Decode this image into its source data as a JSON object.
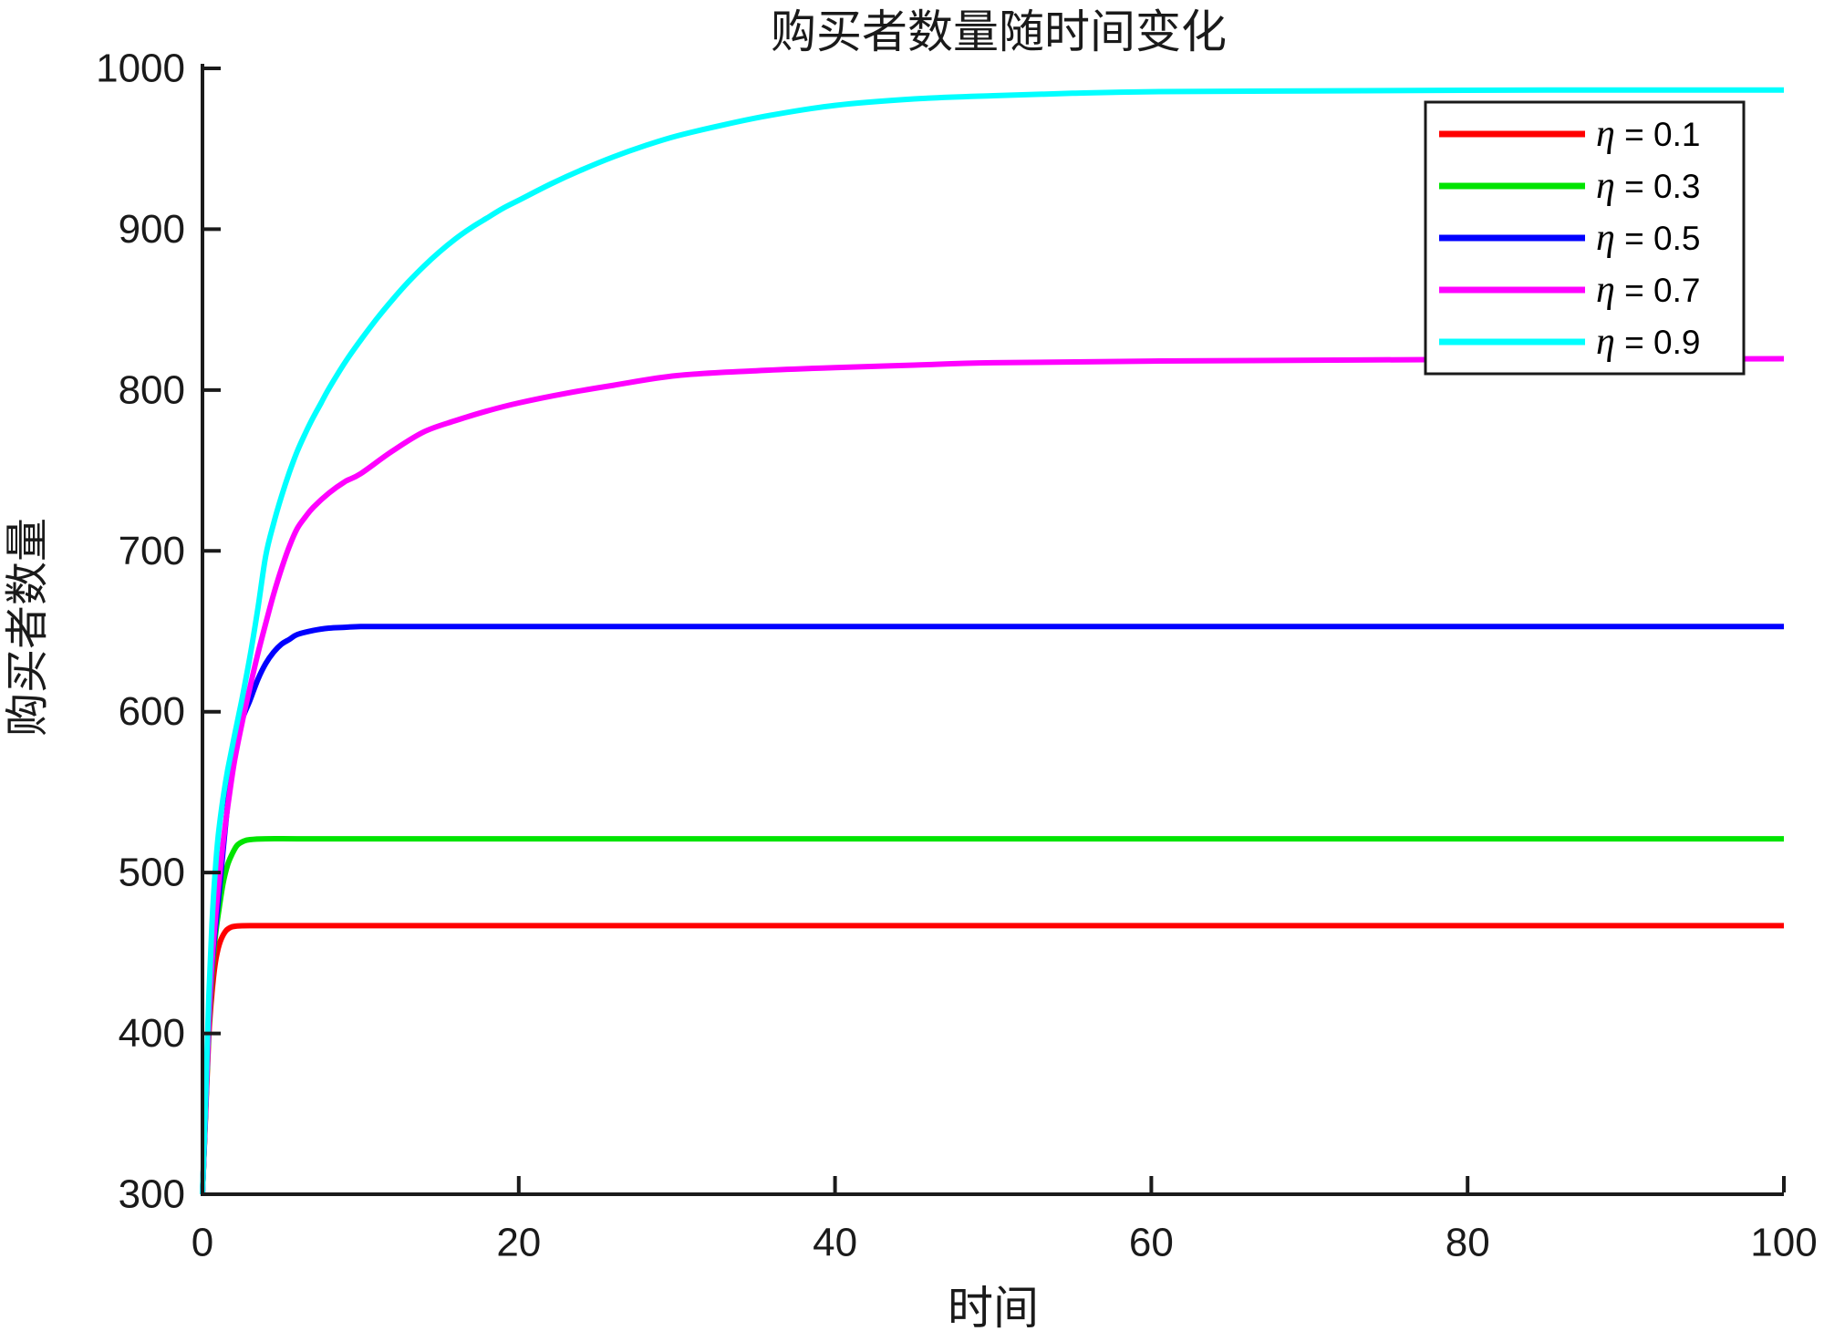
{
  "title": "购买者数量随时间变化",
  "xlabel": "时间",
  "ylabel": "购买者数量",
  "axis_color": "#1a1a1a",
  "background_color": "#ffffff",
  "legend": {
    "position": "top-right",
    "border_color": "#1a1a1a",
    "items": [
      {
        "symbol": "η",
        "value_label": " = 0.1",
        "color": "#ff0000"
      },
      {
        "symbol": "η",
        "value_label": " = 0.3",
        "color": "#00e400"
      },
      {
        "symbol": "η",
        "value_label": " = 0.5",
        "color": "#0000ff"
      },
      {
        "symbol": "η",
        "value_label": " = 0.7",
        "color": "#ff00ff"
      },
      {
        "symbol": "η",
        "value_label": " = 0.9",
        "color": "#00ffff"
      }
    ]
  },
  "chart_data": {
    "type": "line",
    "title": "购买者数量随时间变化",
    "xlabel": "时间",
    "ylabel": "购买者数量",
    "xlim": [
      0,
      100
    ],
    "ylim": [
      300,
      1000
    ],
    "xticks": [
      0,
      20,
      40,
      60,
      80,
      100
    ],
    "yticks": [
      300,
      400,
      500,
      600,
      700,
      800,
      900,
      1000
    ],
    "grid": false,
    "legend_position": "top-right",
    "start_value": 300,
    "series": [
      {
        "name": "η = 0.1",
        "color": "#ff0000",
        "final_value": 467,
        "points": [
          [
            0,
            300
          ],
          [
            0.2,
            350
          ],
          [
            0.4,
            398
          ],
          [
            0.6,
            425
          ],
          [
            0.8,
            443
          ],
          [
            1.0,
            453
          ],
          [
            1.2,
            459
          ],
          [
            1.5,
            464
          ],
          [
            1.8,
            466
          ],
          [
            2.2,
            466.8
          ],
          [
            3,
            467
          ],
          [
            5,
            467
          ],
          [
            10,
            467
          ],
          [
            20,
            467
          ],
          [
            40,
            467
          ],
          [
            70,
            467
          ],
          [
            100,
            467
          ]
        ]
      },
      {
        "name": "η = 0.3",
        "color": "#00e400",
        "final_value": 521,
        "points": [
          [
            0,
            300
          ],
          [
            0.2,
            352
          ],
          [
            0.4,
            402
          ],
          [
            0.6,
            436
          ],
          [
            0.8,
            459
          ],
          [
            1.0,
            474
          ],
          [
            1.3,
            493
          ],
          [
            1.6,
            505
          ],
          [
            1.9,
            512
          ],
          [
            2.2,
            517
          ],
          [
            2.6,
            519.5
          ],
          [
            3,
            520.5
          ],
          [
            4,
            521
          ],
          [
            6,
            521
          ],
          [
            10,
            521
          ],
          [
            20,
            521
          ],
          [
            40,
            521
          ],
          [
            70,
            521
          ],
          [
            100,
            521
          ]
        ]
      },
      {
        "name": "η = 0.5",
        "color": "#0000ff",
        "final_value": 653,
        "points": [
          [
            0,
            300
          ],
          [
            0.2,
            353
          ],
          [
            0.4,
            405
          ],
          [
            0.6,
            441
          ],
          [
            0.8,
            464
          ],
          [
            1.0,
            482
          ],
          [
            1.3,
            513
          ],
          [
            1.6,
            543
          ],
          [
            2.0,
            578
          ],
          [
            2.5,
            595
          ],
          [
            3.0,
            607
          ],
          [
            3.5,
            620
          ],
          [
            4.0,
            630
          ],
          [
            4.5,
            637
          ],
          [
            5.0,
            642
          ],
          [
            5.5,
            645
          ],
          [
            6.0,
            648
          ],
          [
            7.0,
            650.5
          ],
          [
            8.0,
            652
          ],
          [
            9,
            652.5
          ],
          [
            10,
            653
          ],
          [
            12,
            653
          ],
          [
            15,
            653
          ],
          [
            20,
            653
          ],
          [
            30,
            653
          ],
          [
            50,
            653
          ],
          [
            75,
            653
          ],
          [
            100,
            653
          ]
        ]
      },
      {
        "name": "η = 0.7",
        "color": "#ff00ff",
        "final_value": 820,
        "points": [
          [
            0,
            300
          ],
          [
            0.2,
            354
          ],
          [
            0.4,
            407
          ],
          [
            0.6,
            444
          ],
          [
            0.8,
            469
          ],
          [
            1.0,
            490
          ],
          [
            1.3,
            518
          ],
          [
            1.6,
            541
          ],
          [
            2.0,
            568
          ],
          [
            2.5,
            593
          ],
          [
            3.0,
            615
          ],
          [
            3.5,
            636
          ],
          [
            4.0,
            655
          ],
          [
            4.5,
            673
          ],
          [
            5.0,
            689
          ],
          [
            5.5,
            703
          ],
          [
            6.0,
            714
          ],
          [
            6.5,
            721
          ],
          [
            7.0,
            727
          ],
          [
            8.0,
            736
          ],
          [
            9.0,
            743
          ],
          [
            10,
            748
          ],
          [
            12,
            762
          ],
          [
            14,
            774
          ],
          [
            16,
            781
          ],
          [
            18,
            787
          ],
          [
            20,
            792
          ],
          [
            23,
            798
          ],
          [
            26,
            803
          ],
          [
            30,
            809
          ],
          [
            35,
            812
          ],
          [
            40,
            814
          ],
          [
            45,
            815.5
          ],
          [
            50,
            817
          ],
          [
            60,
            818
          ],
          [
            80,
            819
          ],
          [
            100,
            819.5
          ]
        ]
      },
      {
        "name": "η = 0.9",
        "color": "#00ffff",
        "final_value": 986,
        "points": [
          [
            0,
            300
          ],
          [
            0.2,
            360
          ],
          [
            0.4,
            422
          ],
          [
            0.6,
            468
          ],
          [
            0.8,
            500
          ],
          [
            1.0,
            523
          ],
          [
            1.3,
            546
          ],
          [
            1.6,
            564
          ],
          [
            2.0,
            584
          ],
          [
            2.5,
            608
          ],
          [
            3.0,
            634
          ],
          [
            3.5,
            664
          ],
          [
            4.0,
            697
          ],
          [
            4.5,
            717
          ],
          [
            5.0,
            734
          ],
          [
            5.5,
            749
          ],
          [
            6.0,
            762
          ],
          [
            6.5,
            773
          ],
          [
            7.0,
            783
          ],
          [
            7.5,
            792
          ],
          [
            8.0,
            801
          ],
          [
            9.0,
            817
          ],
          [
            10,
            831
          ],
          [
            11,
            844
          ],
          [
            12,
            856
          ],
          [
            13,
            867
          ],
          [
            14,
            877
          ],
          [
            15,
            886
          ],
          [
            16,
            894
          ],
          [
            17,
            901
          ],
          [
            18,
            907
          ],
          [
            19,
            913
          ],
          [
            20,
            918
          ],
          [
            22,
            928
          ],
          [
            24,
            937
          ],
          [
            26,
            945
          ],
          [
            28,
            952
          ],
          [
            30,
            958
          ],
          [
            33,
            965
          ],
          [
            36,
            971
          ],
          [
            40,
            977
          ],
          [
            45,
            981
          ],
          [
            50,
            983
          ],
          [
            55,
            984.5
          ],
          [
            60,
            985.5
          ],
          [
            70,
            986
          ],
          [
            85,
            986.5
          ],
          [
            100,
            986.5
          ]
        ]
      }
    ]
  }
}
